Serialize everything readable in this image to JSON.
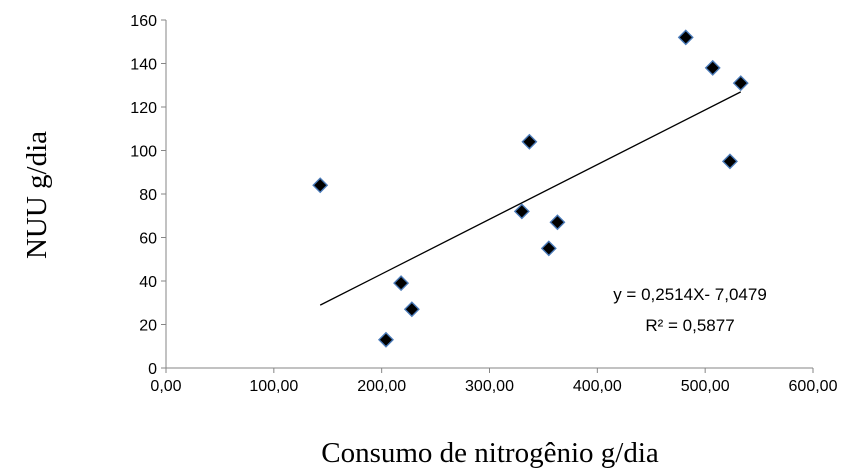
{
  "chart_data": {
    "type": "scatter",
    "xlabel": "Consumo de nitrogênio g/dia",
    "ylabel": "NUU g/dia",
    "xlim": [
      0,
      600
    ],
    "ylim": [
      0,
      160
    ],
    "x_ticks": [
      "0,00",
      "100,00",
      "200,00",
      "300,00",
      "400,00",
      "500,00",
      "600,00"
    ],
    "y_ticks": [
      "0",
      "20",
      "40",
      "60",
      "80",
      "100",
      "120",
      "140",
      "160"
    ],
    "grid": false,
    "legend": "none",
    "points": [
      {
        "x": 143,
        "y": 84
      },
      {
        "x": 204,
        "y": 13
      },
      {
        "x": 218,
        "y": 39
      },
      {
        "x": 228,
        "y": 27
      },
      {
        "x": 330,
        "y": 72
      },
      {
        "x": 337,
        "y": 104
      },
      {
        "x": 355,
        "y": 55
      },
      {
        "x": 363,
        "y": 67
      },
      {
        "x": 482,
        "y": 152
      },
      {
        "x": 507,
        "y": 138
      },
      {
        "x": 523,
        "y": 95
      },
      {
        "x": 533,
        "y": 131
      }
    ],
    "trendline": {
      "x_start": 143,
      "x_end": 533,
      "slope": 0.2514,
      "intercept": -7.0479,
      "equation": "y = 0,2514X- 7,0479",
      "r_squared": "R² = 0,5877"
    },
    "marker_color": "#000000",
    "marker_edge_color": "#4a7ab8",
    "line_color": "#000000"
  }
}
